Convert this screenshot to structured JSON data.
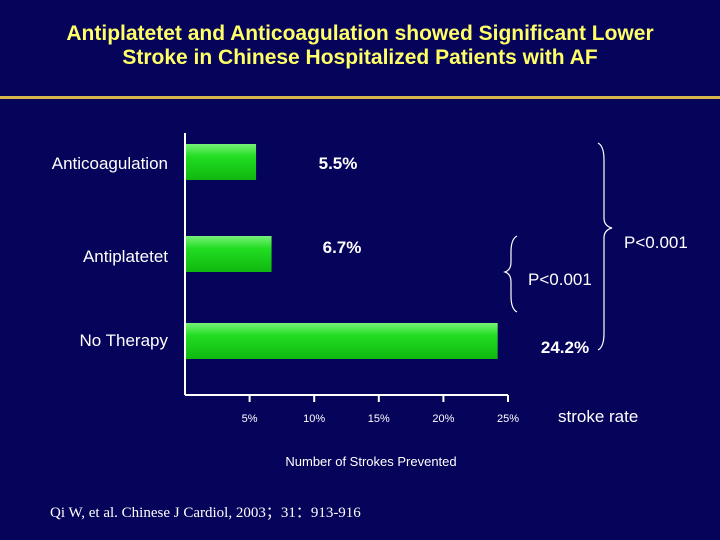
{
  "slide": {
    "title_line1": "Antiplatetet and Anticoagulation showed Significant Lower",
    "title_line2": "Stroke in Chinese Hospitalized Patients with AF",
    "citation": "Qi W, et al. Chinese J Cardiol, 2003；31：913-916"
  },
  "chart_data": {
    "type": "bar",
    "orientation": "horizontal",
    "categories": [
      "Anticoagulation",
      "Antiplatetet",
      "No Therapy"
    ],
    "values": [
      5.5,
      6.7,
      24.2
    ],
    "data_labels": [
      "5.5%",
      "6.7%",
      "24.2%"
    ],
    "bar_color": "#22dd22",
    "xlabel": "Number of Strokes Prevented",
    "axis_note": "stroke rate",
    "xlim": [
      0,
      25
    ],
    "x_ticks": [
      5,
      10,
      15,
      20,
      25
    ],
    "x_tick_labels": [
      "5%",
      "10%",
      "15%",
      "20%",
      "25%"
    ],
    "annotations": [
      "P<0.001",
      "P<0.001"
    ]
  }
}
